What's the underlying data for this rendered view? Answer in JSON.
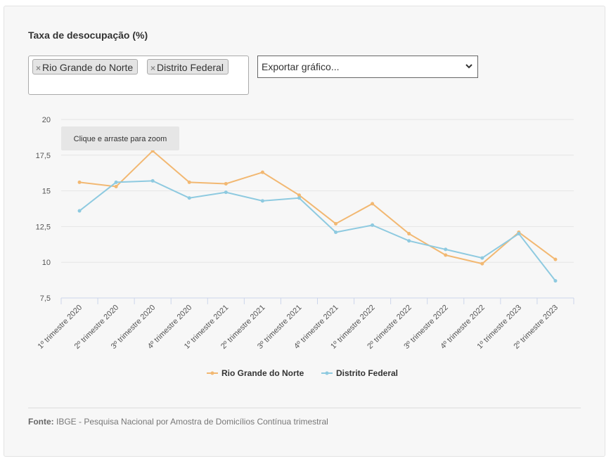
{
  "title": "Taxa de desocupação (%)",
  "filter": {
    "tags": [
      "Rio Grande do Norte",
      "Distrito Federal"
    ],
    "remove_symbol": "×"
  },
  "export": {
    "selected": "Exportar gráfico..."
  },
  "zoom_hint": "Clique e arraste para zoom",
  "source": {
    "label": "Fonte:",
    "text": "IBGE - Pesquisa Nacional por Amostra de Domicílios Contínua trimestral"
  },
  "chart_data": {
    "type": "line",
    "categories": [
      "1º trimestre 2020",
      "2º trimestre 2020",
      "3º trimestre 2020",
      "4º trimestre 2020",
      "1º trimestre 2021",
      "2º trimestre 2021",
      "3º trimestre 2021",
      "4º trimestre 2021",
      "1º trimestre 2022",
      "2º trimestre 2022",
      "3º trimestre 2022",
      "4º trimestre 2022",
      "1º trimestre 2023",
      "2º trimestre 2023"
    ],
    "series": [
      {
        "name": "Rio Grande do Norte",
        "color": "#f2b872",
        "values": [
          15.6,
          15.3,
          17.8,
          15.6,
          15.5,
          16.3,
          14.7,
          12.7,
          14.1,
          12.0,
          10.5,
          9.9,
          12.1,
          10.2
        ]
      },
      {
        "name": "Distrito Federal",
        "color": "#8ecae0",
        "values": [
          13.6,
          15.6,
          15.7,
          14.5,
          14.9,
          14.3,
          14.5,
          12.1,
          12.6,
          11.5,
          10.9,
          10.3,
          12.0,
          8.7
        ]
      }
    ],
    "ylim": [
      7.5,
      20
    ],
    "yticks": [
      7.5,
      10,
      12.5,
      15,
      17.5,
      20
    ],
    "ytick_labels": [
      "7,5",
      "10",
      "12,5",
      "15",
      "17,5",
      "20"
    ],
    "grid": true,
    "legend_position": "bottom-center"
  }
}
